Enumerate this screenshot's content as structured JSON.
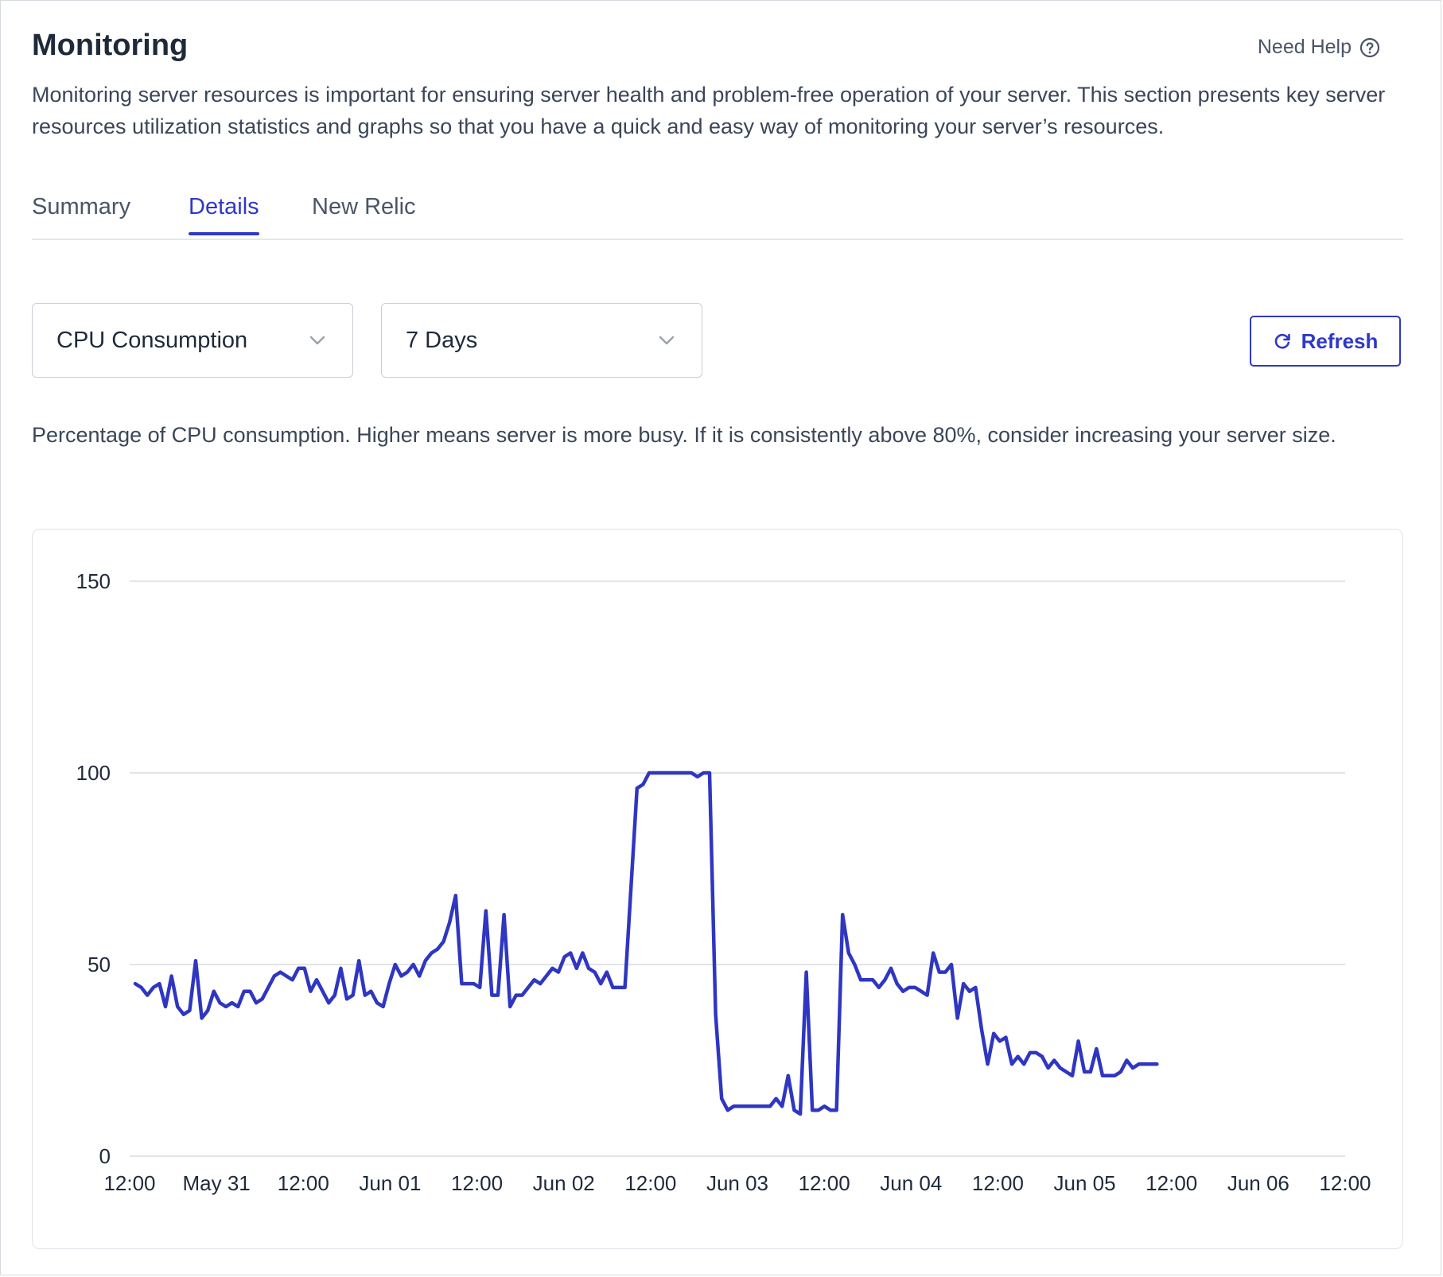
{
  "header": {
    "title": "Monitoring",
    "help_label": "Need Help",
    "description": "Monitoring server resources is important for ensuring server health and problem-free operation of your server. This section presents key server resources utilization statistics and graphs so that you have a quick and easy way of monitoring your server’s resources."
  },
  "tabs": [
    {
      "label": "Summary",
      "active": false
    },
    {
      "label": "Details",
      "active": true
    },
    {
      "label": "New Relic",
      "active": false
    }
  ],
  "filters": {
    "metric_selected": "CPU Consumption",
    "range_selected": "7 Days",
    "refresh_label": "Refresh"
  },
  "metric_note": "Percentage of CPU consumption. Higher means server is more busy. If it is consistently above 80%, consider increasing your server size.",
  "icons": {
    "help": "question-circle-icon",
    "dropdown": "chevron-down-icon",
    "refresh": "refresh-icon"
  },
  "colors": {
    "accent": "#3038c8",
    "line": "#2f36c1",
    "grid": "#d9dce1",
    "text": "#1e2a3a"
  },
  "chart_data": {
    "type": "line",
    "ylim": [
      0,
      150
    ],
    "yticks": [
      0,
      50,
      100,
      150
    ],
    "xticks": [
      "12:00",
      "May 31",
      "12:00",
      "Jun 01",
      "12:00",
      "Jun 02",
      "12:00",
      "Jun 03",
      "12:00",
      "Jun 04",
      "12:00",
      "Jun 05",
      "12:00",
      "Jun 06",
      "12:00"
    ],
    "x_start_label": "May 30 12:00",
    "x_step_hours": 12,
    "grid": true,
    "series": [
      {
        "values_hourly": [
          45,
          44,
          42,
          44,
          45,
          39,
          47,
          39,
          37,
          38,
          51,
          36,
          38,
          43,
          40,
          39,
          40,
          39,
          43,
          43,
          40,
          41,
          44,
          47,
          48,
          47,
          46,
          49,
          49,
          43,
          46,
          43,
          40,
          42,
          49,
          41,
          42,
          51,
          42,
          43,
          40,
          39,
          45,
          50,
          47,
          48,
          50,
          47,
          51,
          53,
          54,
          56,
          61,
          68,
          45,
          45,
          45,
          44,
          64,
          42,
          42,
          63,
          39,
          42,
          42,
          44,
          46,
          45,
          47,
          49,
          48,
          52,
          53,
          49,
          53,
          49,
          48,
          45,
          48,
          44,
          44,
          44,
          70,
          96,
          97,
          100,
          100,
          100,
          100,
          100,
          100,
          100,
          100,
          99,
          100,
          100,
          37,
          15,
          12,
          13,
          13,
          13,
          13,
          13,
          13,
          13,
          15,
          13,
          21,
          12,
          11,
          48,
          12,
          12,
          13,
          12,
          12,
          63,
          53,
          50,
          46,
          46,
          46,
          44,
          46,
          49,
          45,
          43,
          44,
          44,
          43,
          42,
          53,
          48,
          48,
          50,
          36,
          45,
          43,
          44,
          33,
          24,
          32,
          30,
          31,
          24,
          26,
          24,
          27,
          27,
          26,
          23,
          25,
          23,
          22,
          21,
          30,
          22,
          22,
          28,
          21,
          21,
          21,
          22,
          25,
          23,
          24,
          24,
          24,
          24
        ]
      }
    ]
  }
}
